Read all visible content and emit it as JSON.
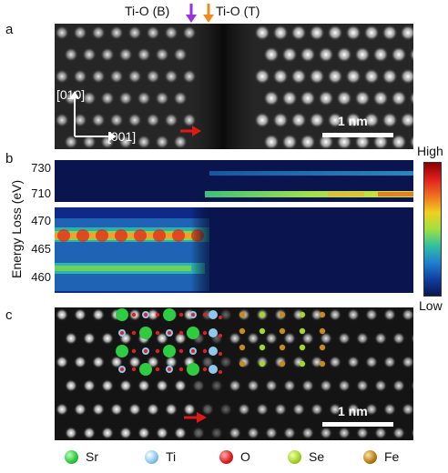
{
  "header": {
    "ti_o_b": "Ti-O (B)",
    "ti_o_t": "Ti-O (T)",
    "arrow_b_color": "#9b30e0",
    "arrow_t_color": "#f08a1c"
  },
  "panels": {
    "a": "a",
    "b": "b",
    "c": "c"
  },
  "panel_a": {
    "dir_010": "[010]",
    "dir_001": "[001]",
    "scale_label": "1 nm"
  },
  "panel_b": {
    "ylabel": "Energy Loss (eV)",
    "ticks_top": [
      "730",
      "710"
    ],
    "ticks_bottom": [
      "470",
      "465",
      "460"
    ],
    "colorbar_high": "High",
    "colorbar_low": "Low"
  },
  "panel_c": {
    "scale_label": "1 nm"
  },
  "legend": [
    {
      "label": "Sr",
      "color": "#2ecc40"
    },
    {
      "label": "Ti",
      "color": "#8ec8ec"
    },
    {
      "label": "O",
      "color": "#e02020"
    },
    {
      "label": "Se",
      "color": "#a6d62a"
    },
    {
      "label": "Fe",
      "color": "#b8801a"
    }
  ]
}
